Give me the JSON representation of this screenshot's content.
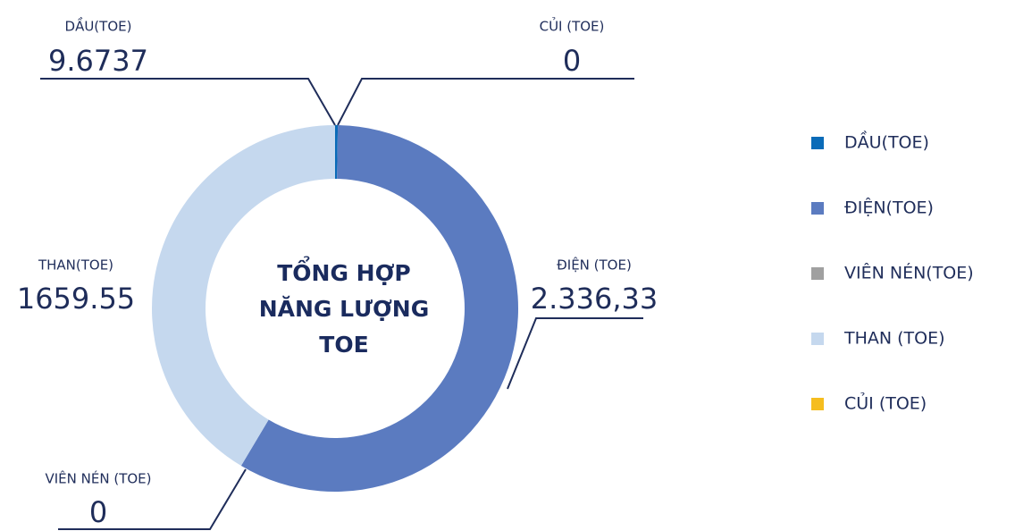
{
  "chart_data": {
    "type": "donut",
    "center_text": [
      "TỔNG HỢP",
      "NĂNG LƯỢNG",
      "TOE"
    ],
    "categories": [
      "DẦU(TOE)",
      "ĐIỆN(TOE)",
      "VIÊN NÉN(TOE)",
      "THAN (TOE)",
      "CỦI (TOE)"
    ],
    "callout_labels": [
      "DẦU(TOE)",
      "ĐIỆN (TOE)",
      "VIÊN NÉN (TOE)",
      "THAN(TOE)",
      "CỦI (TOE)"
    ],
    "values": [
      9.6737,
      2336.33,
      0,
      1659.55,
      0
    ],
    "value_labels": [
      "9.6737",
      "2.336,33",
      "0",
      "1659.55",
      "0"
    ],
    "colors": [
      "#0a6bb8",
      "#5b7bc0",
      "#a0a0a0",
      "#c5d8ee",
      "#f5bd1f"
    ]
  }
}
